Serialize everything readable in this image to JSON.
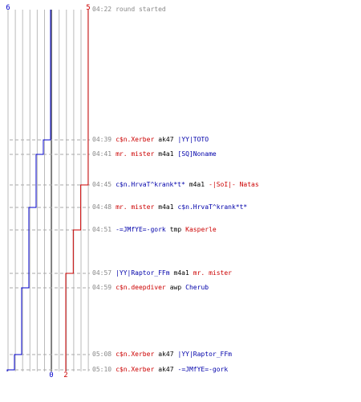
{
  "round": {
    "start_time": "04:22",
    "start_label": "round started",
    "end_time": "05:10"
  },
  "teams": {
    "blue": {
      "color": "#0000cc",
      "start_count": "6",
      "end_count": "0"
    },
    "red": {
      "color": "#cc0000",
      "start_count": "5",
      "end_count": "2"
    }
  },
  "colors": {
    "grid": "#bbbbbb",
    "center_line": "#666666",
    "dashed": "#aaaaaa",
    "time": "#888888"
  },
  "events": [
    {
      "time": "04:39",
      "killer": "c$n.Xerber",
      "killer_team": "red",
      "weapon": "ak47",
      "victim": "|YY|TOTO",
      "victim_team": "blue",
      "blue_after": 5,
      "red_after": 5
    },
    {
      "time": "04:41",
      "killer": "mr. mister",
      "killer_team": "red",
      "weapon": "m4a1",
      "victim": "[SQ]Noname",
      "victim_team": "blue",
      "blue_after": 4,
      "red_after": 5
    },
    {
      "time": "04:45",
      "killer": "c$n.HrvaT^krank*t*",
      "killer_team": "blue",
      "weapon": "m4a1",
      "victim": "-|SoI|- Natas",
      "victim_team": "red",
      "blue_after": 4,
      "red_after": 4
    },
    {
      "time": "04:48",
      "killer": "mr. mister",
      "killer_team": "red",
      "weapon": "m4a1",
      "victim": "c$n.HrvaT^krank*t*",
      "victim_team": "blue",
      "blue_after": 3,
      "red_after": 4
    },
    {
      "time": "04:51",
      "killer": "-=JMfYE=-gork",
      "killer_team": "blue",
      "weapon": "tmp",
      "victim": "Kasperle",
      "victim_team": "red",
      "blue_after": 3,
      "red_after": 3
    },
    {
      "time": "04:57",
      "killer": "|YY|Raptor_FFm",
      "killer_team": "blue",
      "weapon": "m4a1",
      "victim": "mr. mister",
      "victim_team": "red",
      "blue_after": 3,
      "red_after": 2
    },
    {
      "time": "04:59",
      "killer": "c$n.deepdiver",
      "killer_team": "red",
      "weapon": "awp",
      "victim": "Cherub",
      "victim_team": "blue",
      "blue_after": 2,
      "red_after": 2
    },
    {
      "time": "05:08",
      "killer": "c$n.Xerber",
      "killer_team": "red",
      "weapon": "ak47",
      "victim": "|YY|Raptor_FFm",
      "victim_team": "blue",
      "blue_after": 1,
      "red_after": 2
    },
    {
      "time": "05:10",
      "killer": "c$n.Xerber",
      "killer_team": "red",
      "weapon": "ak47",
      "victim": "-=JMfYE=-gork",
      "victim_team": "blue",
      "blue_after": 0,
      "red_after": 2
    }
  ]
}
